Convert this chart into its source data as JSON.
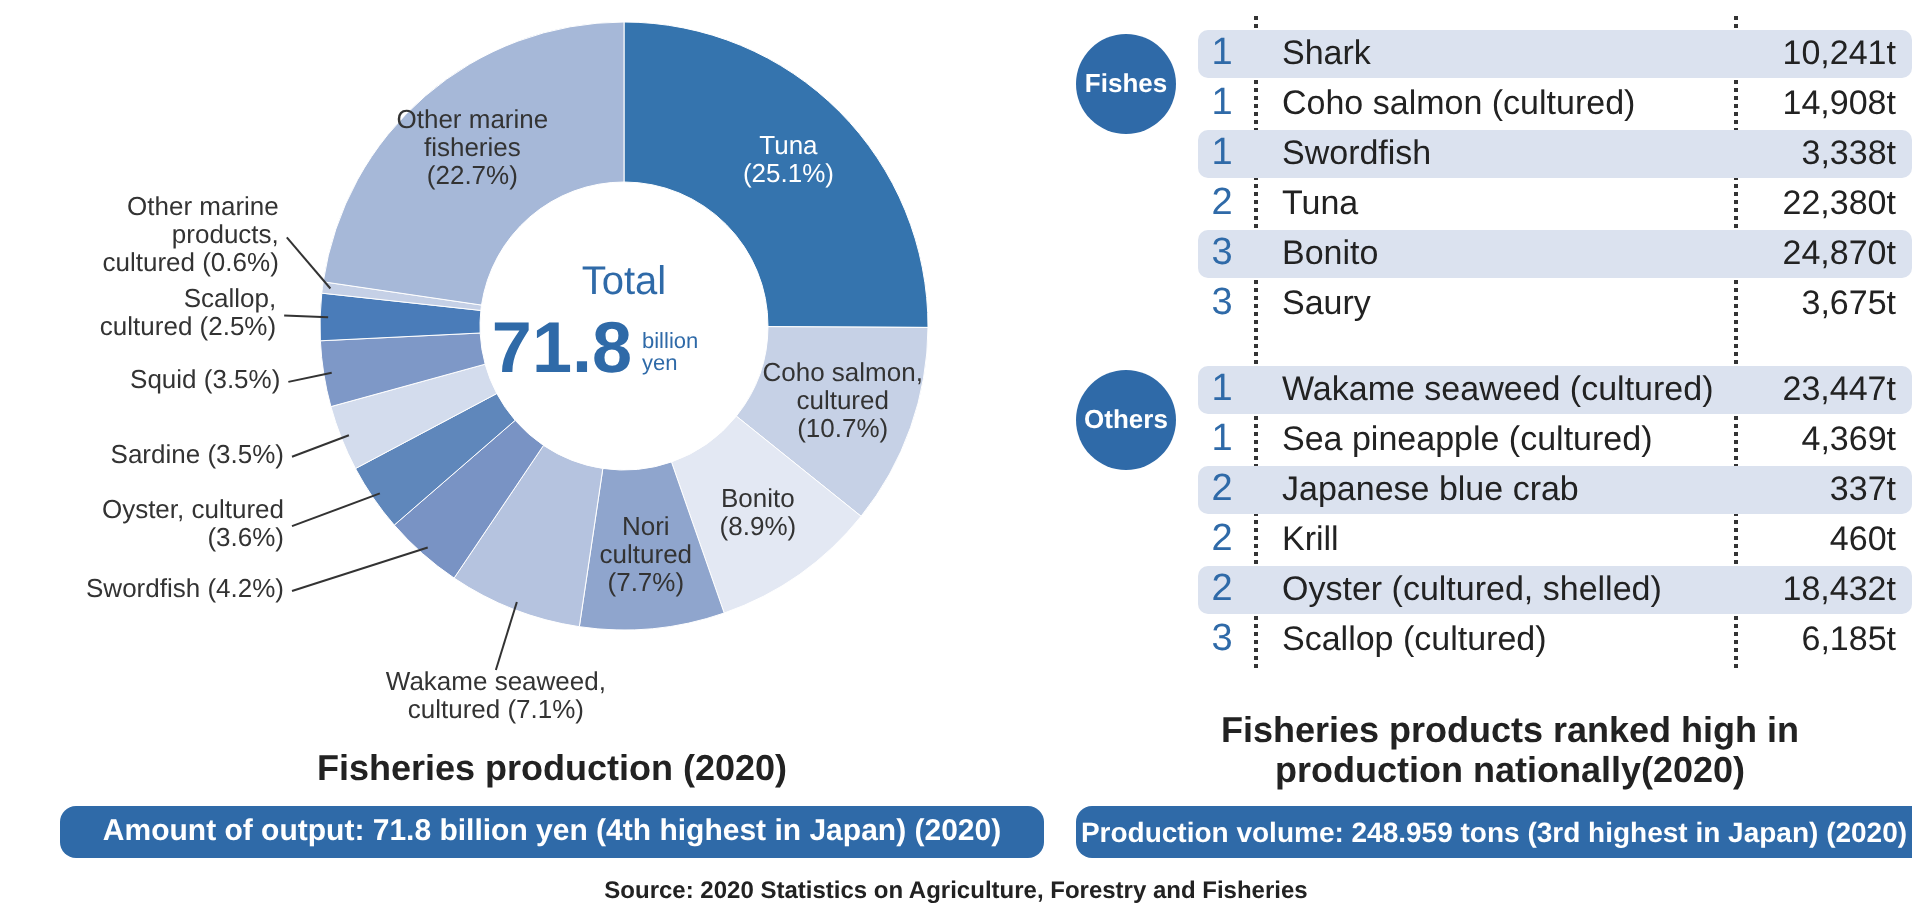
{
  "chart_data": [
    {
      "type": "donut",
      "title": "Fisheries production (2020)",
      "subtitle": "Amount of output: 71.8 billion yen (4th highest in Japan) (2020)",
      "categories": [
        "Tuna",
        "Coho salmon, cultured",
        "Bonito",
        "Nori cultured",
        "Wakame seaweed, cultured",
        "Swordfish",
        "Oyster, cultured",
        "Sardine",
        "Squid",
        "Scallop, cultured",
        "Other marine products, cultured",
        "Other marine fisheries"
      ],
      "values": [
        25.1,
        10.7,
        8.9,
        7.7,
        7.1,
        4.2,
        3.6,
        3.5,
        3.5,
        2.5,
        0.6,
        22.7
      ],
      "value_labels": [
        "(25.1%)",
        "(10.7%)",
        "(8.9%)",
        "(7.7%)",
        "(7.1%)",
        "(4.2%)",
        "(3.6%)",
        "(3.5%)",
        "(3.5%)",
        "(2.5%)",
        "(0.6%)",
        "(22.7%)"
      ],
      "colors": [
        "#3574ae",
        "#c6d1e6",
        "#e3e8f3",
        "#8fa5cd",
        "#b5c3df",
        "#7993c4",
        "#5f87bb",
        "#d3dced",
        "#7e98c7",
        "#4a7cb9",
        "#c5d0e6",
        "#a6b8d8"
      ],
      "annotations": [
        "Total",
        "71.8",
        "billion yen",
        "Source: 2020 Statistics on Agriculture, Forestry and Fisheries"
      ]
    },
    {
      "type": "other",
      "title": "Fisheries products ranked high in production nationally(2020)",
      "subtitle": "Production volume: 248.959 tons (3rd highest in Japan) (2020)",
      "annotations": [
        "Fishes",
        "1",
        "Shark",
        "10,241t",
        "1",
        "Coho salmon (cultured)",
        "14,908t",
        "1",
        "Swordfish",
        "3,338t",
        "2",
        "Tuna",
        "22,380t",
        "3",
        "Bonito",
        "24,870t",
        "3",
        "Saury",
        "3,675t",
        "Others",
        "1",
        "Wakame seaweed (cultured)",
        "23,447t",
        "1",
        "Sea pineapple (cultured)",
        "4,369t",
        "2",
        "Japanese blue crab",
        "337t",
        "2",
        "Krill",
        "460t",
        "2",
        "Oyster (cultured, shelled)",
        "18,432t",
        "3",
        "Scallop (cultured)",
        "6,185t"
      ]
    }
  ]
}
